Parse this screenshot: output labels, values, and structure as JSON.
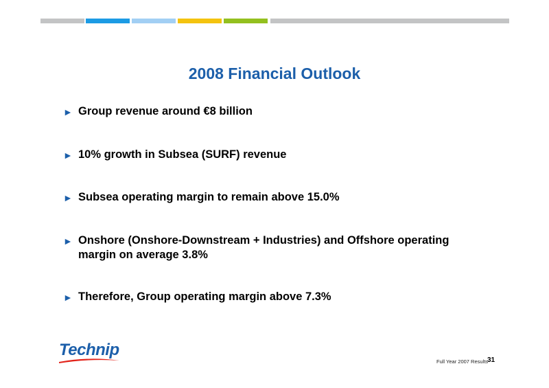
{
  "slide": {
    "title": "2008 Financial Outlook",
    "bullets": [
      "Group revenue around €8 billion",
      "10% growth in Subsea (SURF) revenue",
      "Subsea operating margin to remain above 15.0%",
      "Onshore (Onshore-Downstream + Industries) and Offshore operating margin on average 3.8%",
      "Therefore, Group operating margin above 7.3%"
    ],
    "bullet_marker": "►"
  },
  "header_stripe_colors": [
    "#c3c4c5",
    "#1c9be4",
    "#a2cff4",
    "#f4c30f",
    "#93c01f",
    "#c3c4c5"
  ],
  "accent_color": "#1c5faa",
  "logo": {
    "text": "Technip"
  },
  "footer": {
    "label": "Full Year 2007 Results",
    "page_number": "31"
  }
}
